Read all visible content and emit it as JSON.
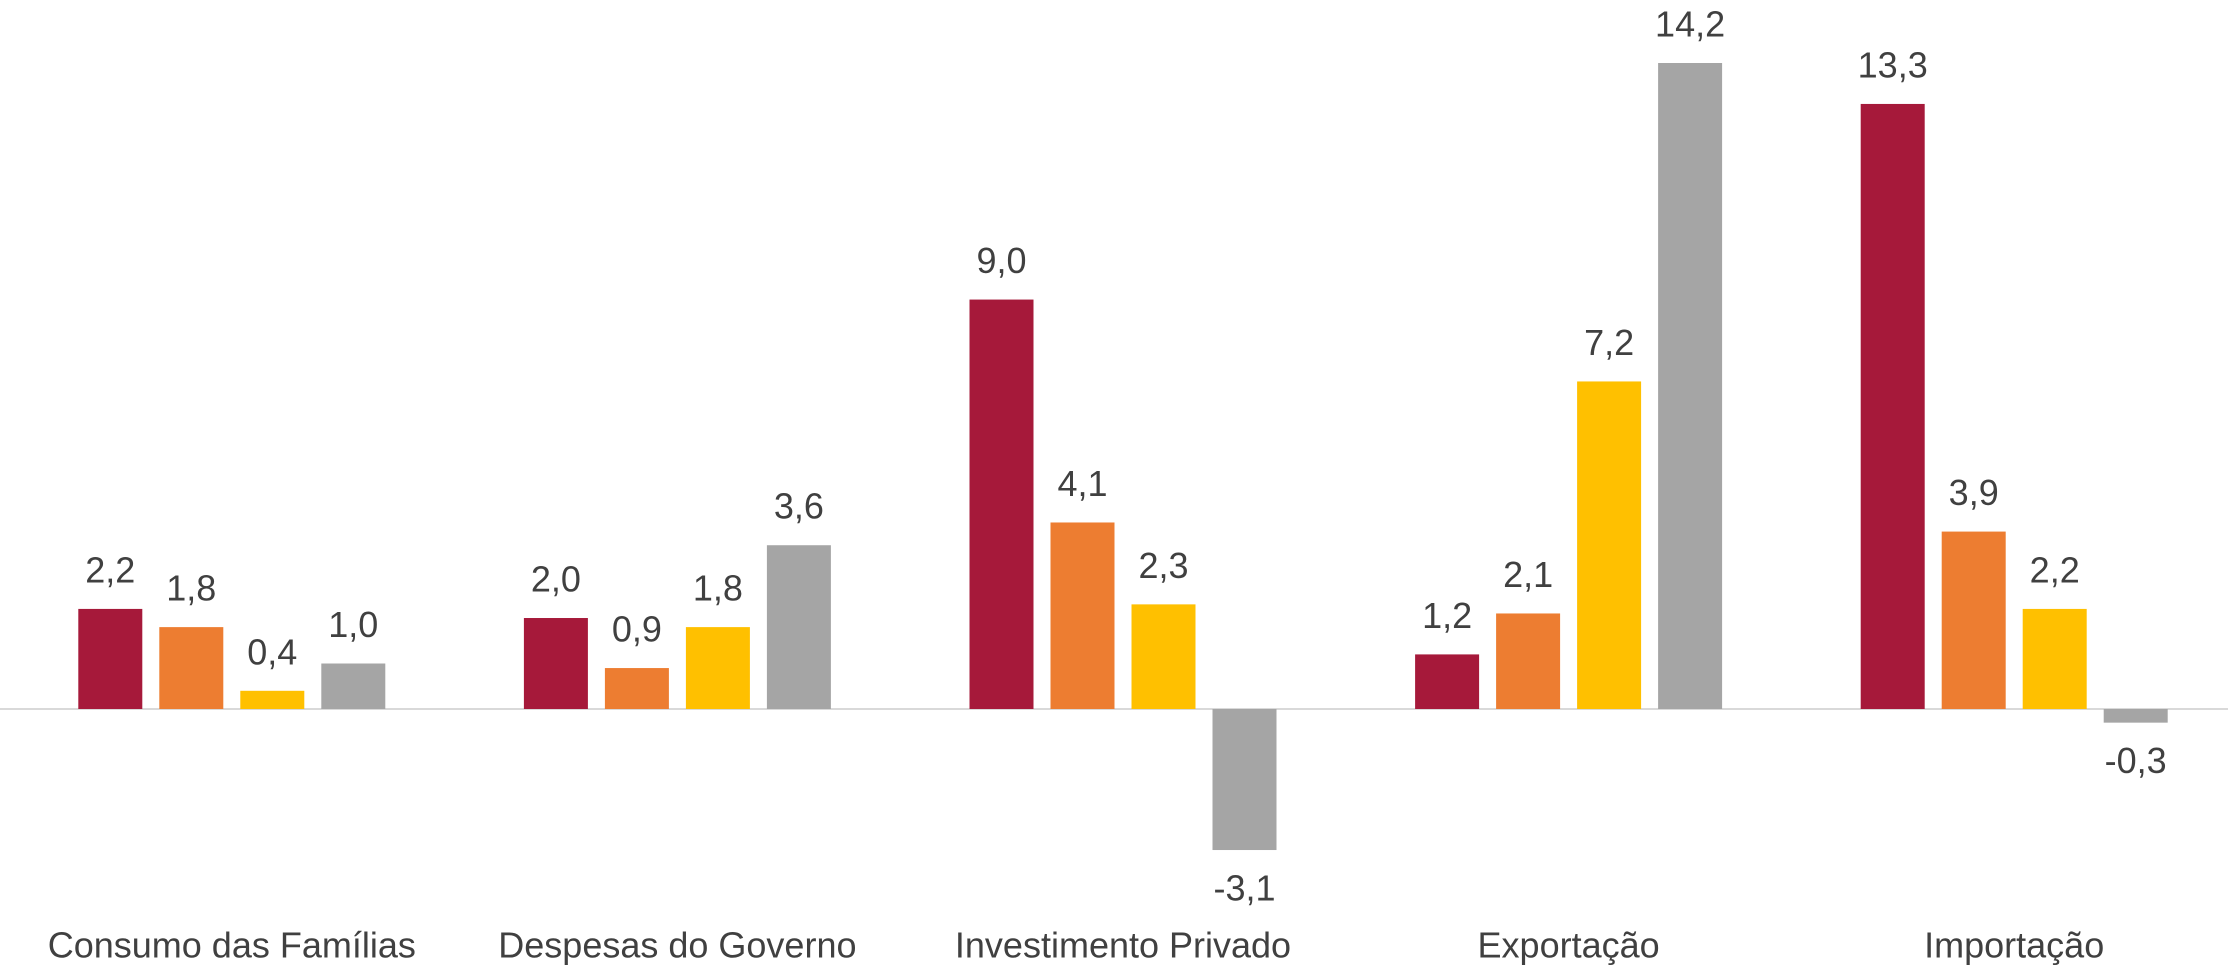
{
  "chart_data": {
    "type": "bar",
    "categories": [
      "Consumo das Famílias",
      "Despesas do Governo",
      "Investimento Privado",
      "Exportação",
      "Importação"
    ],
    "series": [
      {
        "color": "#a6193a",
        "values": [
          2.2,
          2.0,
          9.0,
          1.2,
          13.3
        ],
        "value_labels": [
          "2,2",
          "2,0",
          "9,0",
          "1,2",
          "13,3"
        ]
      },
      {
        "color": "#ed7d31",
        "values": [
          1.8,
          0.9,
          4.1,
          2.1,
          3.9
        ],
        "value_labels": [
          "1,8",
          "0,9",
          "4,1",
          "2,1",
          "3,9"
        ]
      },
      {
        "color": "#ffc000",
        "values": [
          0.4,
          1.8,
          2.3,
          7.2,
          2.2
        ],
        "value_labels": [
          "0,4",
          "1,8",
          "2,3",
          "7,2",
          "2,2"
        ]
      },
      {
        "color": "#a5a5a5",
        "values": [
          1.0,
          3.6,
          -3.1,
          14.2,
          -0.3
        ],
        "value_labels": [
          "1,0",
          "3,6",
          "-3,1",
          "14,2",
          "-0,3"
        ]
      }
    ]
  }
}
